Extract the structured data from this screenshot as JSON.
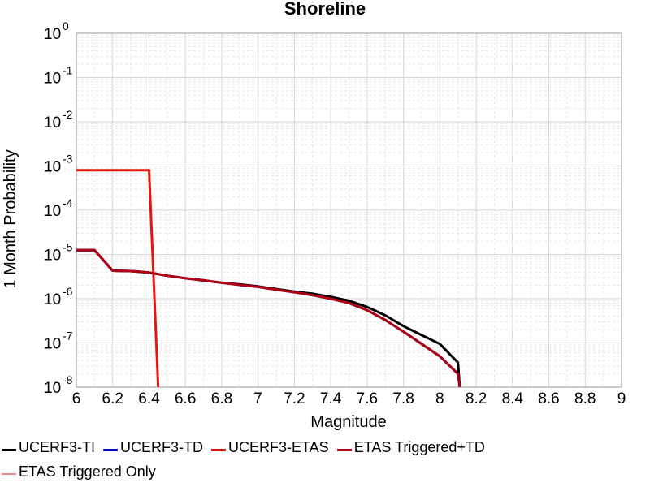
{
  "chart_data": {
    "type": "line",
    "title": "Shoreline",
    "xlabel": "Magnitude",
    "ylabel": "1 Month Probability",
    "xlim": [
      6,
      9
    ],
    "ylim": [
      1e-08,
      1
    ],
    "yscale": "log",
    "grid": true,
    "legend_position": "bottom",
    "x_ticks": [
      "6",
      "6.2",
      "6.4",
      "6.6",
      "6.8",
      "7",
      "7.2",
      "7.4",
      "7.6",
      "7.8",
      "8",
      "8.2",
      "8.4",
      "8.6",
      "8.8",
      "9"
    ],
    "y_ticks": [
      {
        "base": "10",
        "exp": "0",
        "value": 1
      },
      {
        "base": "10",
        "exp": "-1",
        "value": 0.1
      },
      {
        "base": "10",
        "exp": "-2",
        "value": 0.01
      },
      {
        "base": "10",
        "exp": "-3",
        "value": 0.001
      },
      {
        "base": "10",
        "exp": "-4",
        "value": 0.0001
      },
      {
        "base": "10",
        "exp": "-5",
        "value": 1e-05
      },
      {
        "base": "10",
        "exp": "-6",
        "value": 1e-06
      },
      {
        "base": "10",
        "exp": "-7",
        "value": 1e-07
      },
      {
        "base": "10",
        "exp": "-8",
        "value": 1e-08
      }
    ],
    "series": [
      {
        "name": "UCERF3-TI",
        "color": "#000000",
        "x": [
          6.0,
          6.1,
          6.2,
          6.3,
          6.4,
          6.5,
          6.6,
          6.7,
          6.8,
          6.9,
          7.0,
          7.1,
          7.2,
          7.3,
          7.4,
          7.5,
          7.6,
          7.7,
          7.8,
          7.9,
          8.0,
          8.1,
          8.11
        ],
        "y": [
          1.25e-05,
          1.25e-05,
          4.3e-06,
          4.2e-06,
          3.9e-06,
          3.3e-06,
          2.9e-06,
          2.6e-06,
          2.3e-06,
          2.1e-06,
          1.9e-06,
          1.65e-06,
          1.45e-06,
          1.3e-06,
          1.1e-06,
          9e-07,
          6.5e-07,
          4.2e-07,
          2.4e-07,
          1.5e-07,
          9.5e-08,
          3.6e-08,
          1e-08
        ]
      },
      {
        "name": "UCERF3-TD",
        "color": "#0000cc",
        "x": [
          6.0,
          6.1,
          6.2,
          6.3,
          6.4,
          6.5,
          6.6,
          6.7,
          6.8,
          6.9,
          7.0,
          7.1,
          7.2,
          7.3,
          7.4,
          7.5,
          7.6,
          7.7,
          7.8,
          7.9,
          8.0,
          8.1,
          8.11
        ],
        "y": [
          1.25e-05,
          1.25e-05,
          4.3e-06,
          4.2e-06,
          3.9e-06,
          3.3e-06,
          2.9e-06,
          2.6e-06,
          2.3e-06,
          2.05e-06,
          1.85e-06,
          1.6e-06,
          1.4e-06,
          1.2e-06,
          1e-06,
          8e-07,
          5.5e-07,
          3.3e-07,
          1.8e-07,
          9.5e-08,
          5e-08,
          2e-08,
          1e-08
        ]
      },
      {
        "name": "UCERF3-ETAS",
        "color": "#e8140f",
        "x": [
          6.0,
          6.4,
          6.45
        ],
        "y": [
          0.0008,
          0.0008,
          1e-08
        ]
      },
      {
        "name": "ETAS Triggered+TD",
        "color": "#b00010",
        "x": [
          6.0,
          6.1,
          6.2,
          6.3,
          6.4,
          6.5,
          6.6,
          6.7,
          6.8,
          6.9,
          7.0,
          7.1,
          7.2,
          7.3,
          7.4,
          7.5,
          7.6,
          7.7,
          7.8,
          7.9,
          8.0,
          8.1,
          8.11
        ],
        "y": [
          1.25e-05,
          1.25e-05,
          4.3e-06,
          4.2e-06,
          3.9e-06,
          3.3e-06,
          2.9e-06,
          2.6e-06,
          2.3e-06,
          2.05e-06,
          1.85e-06,
          1.6e-06,
          1.4e-06,
          1.2e-06,
          1e-06,
          8e-07,
          5.5e-07,
          3.3e-07,
          1.8e-07,
          9.5e-08,
          5e-08,
          2e-08,
          1e-08
        ]
      },
      {
        "name": "ETAS Triggered Only",
        "color": "#f08a8a",
        "x": [],
        "y": []
      }
    ]
  }
}
